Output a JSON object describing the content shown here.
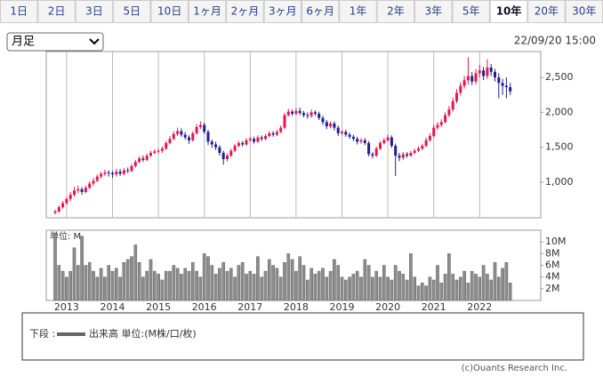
{
  "tabs": {
    "items": [
      "1日",
      "2日",
      "3日",
      "5日",
      "10日",
      "1ヶ月",
      "2ヶ月",
      "3ヶ月",
      "6ヶ月",
      "1年",
      "2年",
      "3年",
      "5年",
      "10年",
      "20年",
      "30年"
    ],
    "selected": 13
  },
  "select_label": "月足",
  "timestamp": "22/09/20 15:00",
  "chart_data": [
    {
      "type": "candlestick",
      "up_color": "#e8154f",
      "down_color": "#1f1f8f",
      "ylim": [
        490,
        2870
      ],
      "yticks": [
        {
          "value": 1000,
          "label": "1,000"
        },
        {
          "value": 1500,
          "label": "1,500"
        },
        {
          "value": 2000,
          "label": "2,000"
        },
        {
          "value": 2500,
          "label": "2,500"
        }
      ],
      "open": [
        560,
        580,
        640,
        700,
        760,
        820,
        880,
        900,
        860,
        920,
        980,
        1020,
        1080,
        1120,
        1140,
        1130,
        1110,
        1150,
        1120,
        1170,
        1160,
        1230,
        1290,
        1340,
        1320,
        1380,
        1420,
        1440,
        1450,
        1480,
        1560,
        1620,
        1690,
        1730,
        1680,
        1640,
        1600,
        1700,
        1790,
        1820,
        1720,
        1580,
        1540,
        1500,
        1420,
        1330,
        1380,
        1450,
        1520,
        1560,
        1540,
        1600,
        1620,
        1580,
        1640,
        1620,
        1660,
        1700,
        1680,
        1720,
        1780,
        1960,
        2010,
        1980,
        2020,
        1990,
        1960,
        1950,
        2000,
        1980,
        1920,
        1860,
        1800,
        1840,
        1780,
        1700,
        1720,
        1680,
        1650,
        1620,
        1580,
        1600,
        1560,
        1400,
        1380,
        1480,
        1560,
        1600,
        1640,
        1520,
        1380,
        1350,
        1400,
        1380,
        1420,
        1450,
        1480,
        1520,
        1600,
        1660,
        1780,
        1820,
        1860,
        1960,
        2040,
        2160,
        2280,
        2380,
        2460,
        2520,
        2440,
        2560,
        2600,
        2520,
        2640,
        2580,
        2500,
        2420,
        2380,
        2360
      ],
      "high": [
        610,
        670,
        730,
        790,
        860,
        930,
        950,
        930,
        950,
        1010,
        1060,
        1110,
        1150,
        1180,
        1170,
        1160,
        1190,
        1190,
        1200,
        1210,
        1260,
        1320,
        1370,
        1380,
        1410,
        1450,
        1470,
        1480,
        1510,
        1590,
        1660,
        1730,
        1780,
        1770,
        1720,
        1670,
        1730,
        1830,
        1870,
        1850,
        1750,
        1610,
        1580,
        1530,
        1450,
        1410,
        1480,
        1550,
        1590,
        1590,
        1630,
        1650,
        1650,
        1670,
        1670,
        1690,
        1730,
        1730,
        1750,
        1810,
        1990,
        2050,
        2040,
        2060,
        2070,
        2020,
        2000,
        2040,
        2030,
        2010,
        1950,
        1890,
        1870,
        1870,
        1810,
        1750,
        1750,
        1710,
        1680,
        1650,
        1630,
        1630,
        1590,
        1430,
        1510,
        1590,
        1630,
        1680,
        1670,
        1550,
        1420,
        1430,
        1430,
        1450,
        1480,
        1510,
        1550,
        1640,
        1700,
        1820,
        1860,
        1900,
        2000,
        2090,
        2210,
        2330,
        2430,
        2520,
        2790,
        2580,
        2620,
        2680,
        2650,
        2760,
        2690,
        2620,
        2560,
        2480,
        2500,
        2420
      ],
      "low": [
        540,
        560,
        620,
        680,
        730,
        790,
        840,
        820,
        840,
        900,
        950,
        1000,
        1050,
        1090,
        1080,
        1060,
        1080,
        1090,
        1100,
        1130,
        1140,
        1210,
        1270,
        1290,
        1300,
        1360,
        1400,
        1410,
        1420,
        1460,
        1540,
        1600,
        1660,
        1650,
        1610,
        1550,
        1580,
        1680,
        1760,
        1690,
        1530,
        1490,
        1460,
        1380,
        1250,
        1300,
        1360,
        1430,
        1500,
        1510,
        1520,
        1580,
        1550,
        1560,
        1590,
        1600,
        1640,
        1650,
        1660,
        1700,
        1760,
        1940,
        1950,
        1960,
        1960,
        1930,
        1910,
        1920,
        1950,
        1890,
        1820,
        1760,
        1770,
        1740,
        1660,
        1670,
        1650,
        1620,
        1590,
        1540,
        1550,
        1530,
        1370,
        1340,
        1360,
        1460,
        1540,
        1580,
        1490,
        1090,
        1300,
        1320,
        1350,
        1360,
        1400,
        1430,
        1460,
        1500,
        1580,
        1640,
        1750,
        1790,
        1840,
        1930,
        2010,
        2130,
        2240,
        2340,
        2400,
        2390,
        2400,
        2500,
        2460,
        2480,
        2520,
        2440,
        2200,
        2250,
        2200,
        2250
      ],
      "close": [
        580,
        640,
        700,
        760,
        820,
        880,
        900,
        860,
        920,
        980,
        1020,
        1080,
        1120,
        1140,
        1130,
        1110,
        1150,
        1120,
        1170,
        1160,
        1230,
        1290,
        1340,
        1320,
        1380,
        1420,
        1440,
        1450,
        1480,
        1560,
        1620,
        1690,
        1730,
        1680,
        1640,
        1600,
        1700,
        1790,
        1820,
        1720,
        1580,
        1540,
        1500,
        1420,
        1330,
        1380,
        1450,
        1520,
        1560,
        1540,
        1600,
        1620,
        1580,
        1640,
        1620,
        1660,
        1700,
        1680,
        1720,
        1780,
        1960,
        2010,
        1980,
        2020,
        1990,
        1960,
        1950,
        2000,
        1980,
        1920,
        1860,
        1800,
        1840,
        1780,
        1700,
        1720,
        1680,
        1650,
        1620,
        1580,
        1600,
        1560,
        1400,
        1380,
        1480,
        1560,
        1600,
        1640,
        1520,
        1380,
        1350,
        1400,
        1380,
        1420,
        1450,
        1480,
        1520,
        1600,
        1660,
        1780,
        1820,
        1860,
        1960,
        2040,
        2160,
        2280,
        2380,
        2460,
        2520,
        2440,
        2560,
        2600,
        2520,
        2640,
        2580,
        2500,
        2420,
        2380,
        2360,
        2300
      ]
    },
    {
      "type": "bar",
      "unit_label": "単位: M",
      "color": "#8c8c8c",
      "ylim": [
        0,
        12
      ],
      "yticks": [
        {
          "value": 2,
          "label": "2M"
        },
        {
          "value": 4,
          "label": "4M"
        },
        {
          "value": 6,
          "label": "6M"
        },
        {
          "value": 8,
          "label": "8M"
        },
        {
          "value": 10,
          "label": "10M"
        }
      ],
      "categories": [
        null,
        null,
        null,
        "2013",
        null,
        null,
        null,
        null,
        null,
        null,
        null,
        null,
        null,
        null,
        null,
        "2014",
        null,
        null,
        null,
        null,
        null,
        null,
        null,
        null,
        null,
        null,
        null,
        "2015",
        null,
        null,
        null,
        null,
        null,
        null,
        null,
        null,
        null,
        null,
        null,
        "2016",
        null,
        null,
        null,
        null,
        null,
        null,
        null,
        null,
        null,
        null,
        null,
        "2017",
        null,
        null,
        null,
        null,
        null,
        null,
        null,
        null,
        null,
        null,
        null,
        "2018",
        null,
        null,
        null,
        null,
        null,
        null,
        null,
        null,
        null,
        null,
        null,
        "2019",
        null,
        null,
        null,
        null,
        null,
        null,
        null,
        null,
        null,
        null,
        null,
        "2020",
        null,
        null,
        null,
        null,
        null,
        null,
        null,
        null,
        null,
        null,
        null,
        "2021",
        null,
        null,
        null,
        null,
        null,
        null,
        null,
        null,
        null,
        null,
        null,
        "2022",
        null,
        null,
        null,
        null,
        null,
        null,
        null,
        null
      ],
      "values": [
        11.5,
        6,
        5,
        4,
        5,
        9,
        6,
        11,
        6,
        6.5,
        5,
        4,
        5.5,
        4,
        6,
        5,
        5.5,
        4,
        6.5,
        7,
        7.5,
        9.5,
        6.5,
        4,
        5,
        7,
        5,
        4.5,
        3.5,
        5,
        5,
        6,
        5.5,
        4.5,
        5.5,
        5,
        6.5,
        5,
        4,
        8,
        7.5,
        6,
        4.5,
        5.5,
        6.5,
        5,
        5.5,
        4,
        6,
        6.5,
        4.5,
        5,
        4.5,
        7.5,
        4,
        5,
        7,
        6,
        5.5,
        4,
        6.5,
        8,
        7,
        5,
        7.5,
        6,
        3.5,
        5.5,
        4.5,
        5,
        5.5,
        4,
        5,
        7,
        6,
        4,
        3.5,
        4,
        4.5,
        5,
        4,
        7,
        6,
        4,
        5,
        4,
        6,
        4,
        3.5,
        6,
        5,
        4.5,
        3.5,
        8,
        4,
        2.5,
        3,
        2.5,
        4,
        3.5,
        6,
        3,
        4.5,
        8,
        4.5,
        3.5,
        4,
        5,
        3,
        5,
        4.5,
        4,
        6,
        4.5,
        3.5,
        6.5,
        4,
        5.5,
        6.5,
        3
      ]
    }
  ],
  "legend": {
    "prefix": "下段 :",
    "label": "出来高 単位:(M株/口/枚)"
  },
  "footer": "(c)Ouants Research Inc."
}
